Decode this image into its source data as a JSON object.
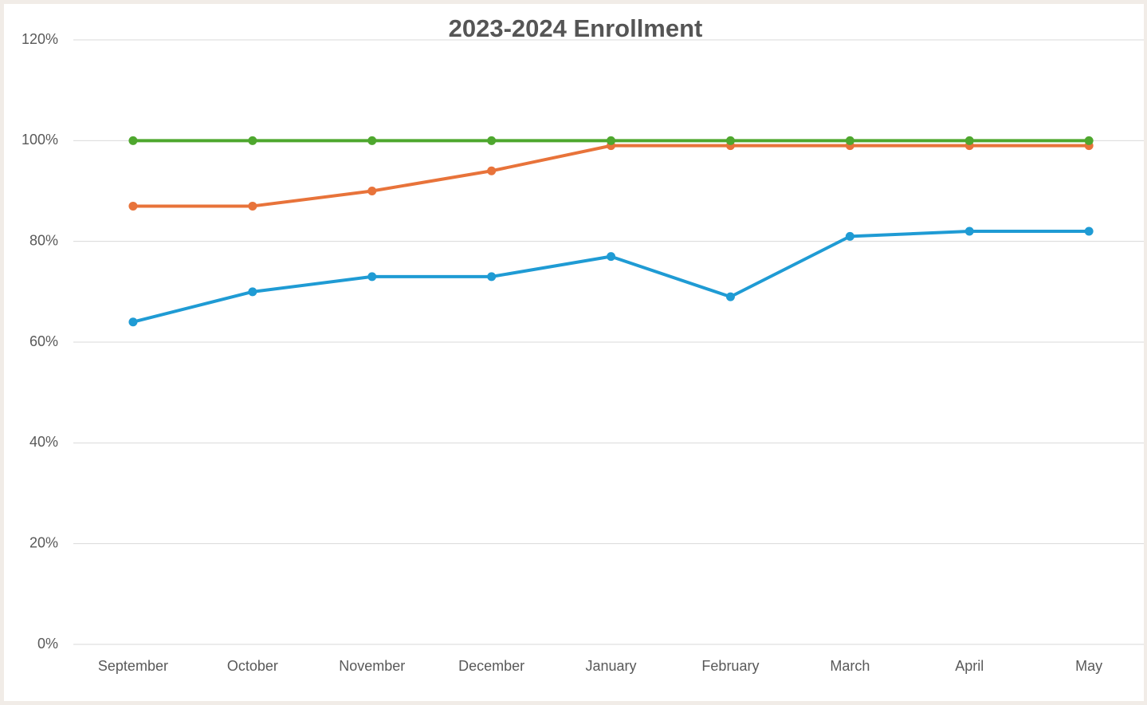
{
  "chart_data": {
    "type": "line",
    "title": "2023-2024 Enrollment",
    "categories": [
      "September",
      "October",
      "November",
      "December",
      "January",
      "February",
      "March",
      "April",
      "May"
    ],
    "series": [
      {
        "color": "#1f9bd4",
        "values": [
          64,
          70,
          73,
          73,
          77,
          69,
          81,
          82,
          82
        ]
      },
      {
        "color": "#e8733a",
        "values": [
          87,
          87,
          90,
          94,
          99,
          99,
          99,
          99,
          99
        ]
      },
      {
        "color": "#4ea72e",
        "values": [
          100,
          100,
          100,
          100,
          100,
          100,
          100,
          100,
          100
        ]
      }
    ],
    "ylim": [
      0,
      120
    ],
    "yticks": [
      {
        "value": 0,
        "label": "0%"
      },
      {
        "value": 20,
        "label": "20%"
      },
      {
        "value": 40,
        "label": "40%"
      },
      {
        "value": 60,
        "label": "60%"
      },
      {
        "value": 80,
        "label": "80%"
      },
      {
        "value": 100,
        "label": "100%"
      },
      {
        "value": 120,
        "label": "120%"
      }
    ],
    "grid": true
  }
}
